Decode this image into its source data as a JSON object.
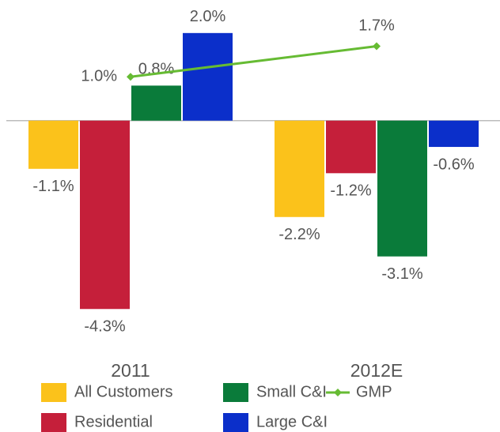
{
  "chart_data": {
    "type": "bar",
    "categories": [
      "2011",
      "2012E"
    ],
    "ylim": [
      -4.8,
      2.7
    ],
    "series": [
      {
        "name": "All Customers",
        "color": "#fbc21b",
        "values": [
          -1.1,
          -2.2
        ],
        "value_labels": [
          "-1.1%",
          "-2.2%"
        ]
      },
      {
        "name": "Residential",
        "color": "#c51f3a",
        "values": [
          -4.3,
          -1.2
        ],
        "value_labels": [
          "-4.3%",
          "-1.2%"
        ]
      },
      {
        "name": "Small C&I",
        "color": "#0a7b3a",
        "values": [
          0.8,
          -3.1
        ],
        "value_labels": [
          "0.8%",
          "-3.1%"
        ]
      },
      {
        "name": "Large C&I",
        "color": "#0b2fca",
        "values": [
          2.0,
          -0.6
        ],
        "value_labels": [
          "2.0%",
          "-0.6%"
        ]
      },
      {
        "name": "GMP",
        "type": "line",
        "color": "#66bb33",
        "values": [
          1.0,
          1.7
        ],
        "value_labels": [
          "1.0%",
          "1.7%"
        ]
      }
    ]
  }
}
